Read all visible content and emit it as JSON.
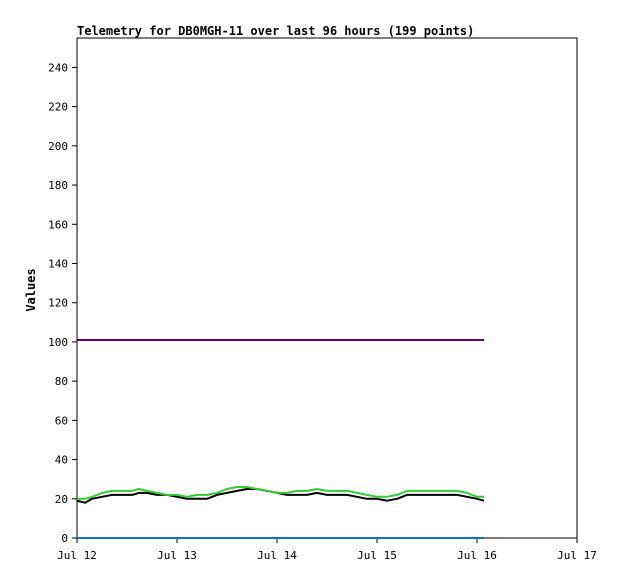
{
  "chart_data": {
    "type": "line",
    "title": "Telemetry for DB0MGH-11 over last 96 hours (199 points)",
    "xlabel": "",
    "ylabel": "Values",
    "x_ticks": [
      "Jul 12",
      "Jul 13",
      "Jul 14",
      "Jul 15",
      "Jul 16",
      "Jul 17"
    ],
    "xlim": [
      "Jul 12",
      "Jul 17"
    ],
    "ylim": [
      0,
      255
    ],
    "y_ticks": [
      0,
      20,
      40,
      60,
      80,
      100,
      120,
      140,
      160,
      180,
      200,
      220,
      240
    ],
    "grid": false,
    "series": [
      {
        "color": "#660066",
        "x": [
          0,
          4.07
        ],
        "y": [
          101,
          101
        ]
      },
      {
        "color": "#000000",
        "x": [
          0,
          0.08,
          0.15,
          0.25,
          0.35,
          0.45,
          0.55,
          0.62,
          0.7,
          0.8,
          0.9,
          1.0,
          1.1,
          1.2,
          1.3,
          1.4,
          1.5,
          1.6,
          1.7,
          1.8,
          1.9,
          2.0,
          2.1,
          2.2,
          2.3,
          2.4,
          2.5,
          2.6,
          2.7,
          2.8,
          2.9,
          3.0,
          3.1,
          3.2,
          3.3,
          3.4,
          3.5,
          3.6,
          3.7,
          3.8,
          3.9,
          4.0,
          4.07
        ],
        "y": [
          19,
          18,
          20,
          21,
          22,
          22,
          22,
          23,
          23,
          22,
          22,
          21,
          20,
          20,
          20,
          22,
          23,
          24,
          25,
          25,
          24,
          23,
          22,
          22,
          22,
          23,
          22,
          22,
          22,
          21,
          20,
          20,
          19,
          20,
          22,
          22,
          22,
          22,
          22,
          22,
          21,
          20,
          19
        ]
      },
      {
        "color": "#33cc33",
        "x": [
          0,
          0.08,
          0.15,
          0.25,
          0.35,
          0.45,
          0.55,
          0.62,
          0.7,
          0.8,
          0.9,
          1.0,
          1.1,
          1.2,
          1.3,
          1.4,
          1.5,
          1.6,
          1.7,
          1.8,
          1.9,
          2.0,
          2.1,
          2.2,
          2.3,
          2.4,
          2.5,
          2.6,
          2.7,
          2.8,
          2.9,
          3.0,
          3.1,
          3.2,
          3.3,
          3.4,
          3.5,
          3.6,
          3.7,
          3.8,
          3.9,
          4.0,
          4.07
        ],
        "y": [
          20,
          20,
          21,
          23,
          24,
          24,
          24,
          25,
          24,
          23,
          22,
          22,
          21,
          22,
          22,
          23,
          25,
          26,
          26,
          25,
          24,
          23,
          23,
          24,
          24,
          25,
          24,
          24,
          24,
          23,
          22,
          21,
          21,
          22,
          24,
          24,
          24,
          24,
          24,
          24,
          23,
          21,
          21
        ]
      },
      {
        "color": "#0077cc",
        "x": [
          0,
          4.07
        ],
        "y": [
          0,
          0
        ]
      }
    ]
  }
}
